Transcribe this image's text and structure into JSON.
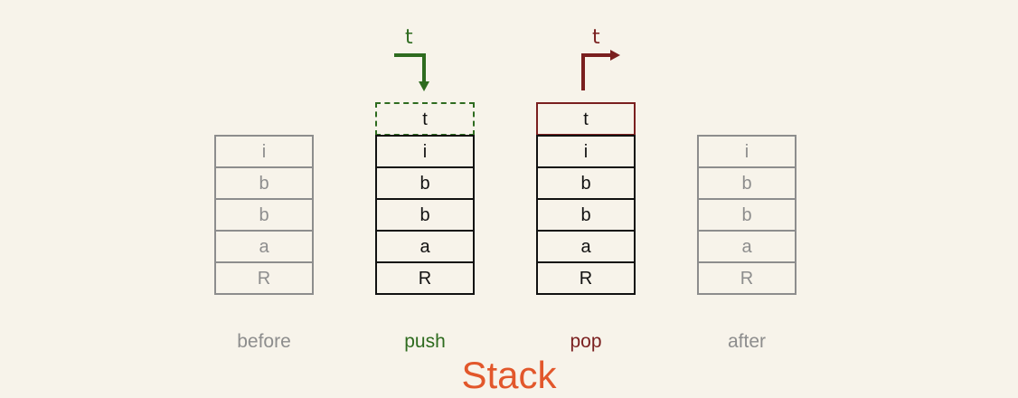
{
  "diagram": {
    "title": "Stack",
    "colors": {
      "background": "#f7f3ea",
      "gray": "#8d8d8d",
      "black": "#111111",
      "push": "#2e6b1f",
      "pop": "#7a1f1f",
      "title": "#e2572b"
    },
    "stacks": {
      "before": {
        "label": "before",
        "cells": [
          "i",
          "b",
          "b",
          "a",
          "R"
        ]
      },
      "push": {
        "label": "push",
        "top": "t",
        "arrow_label": "t",
        "cells": [
          "i",
          "b",
          "b",
          "a",
          "R"
        ]
      },
      "pop": {
        "label": "pop",
        "top": "t",
        "arrow_label": "t",
        "cells": [
          "i",
          "b",
          "b",
          "a",
          "R"
        ]
      },
      "after": {
        "label": "after",
        "cells": [
          "i",
          "b",
          "b",
          "a",
          "R"
        ]
      }
    }
  }
}
